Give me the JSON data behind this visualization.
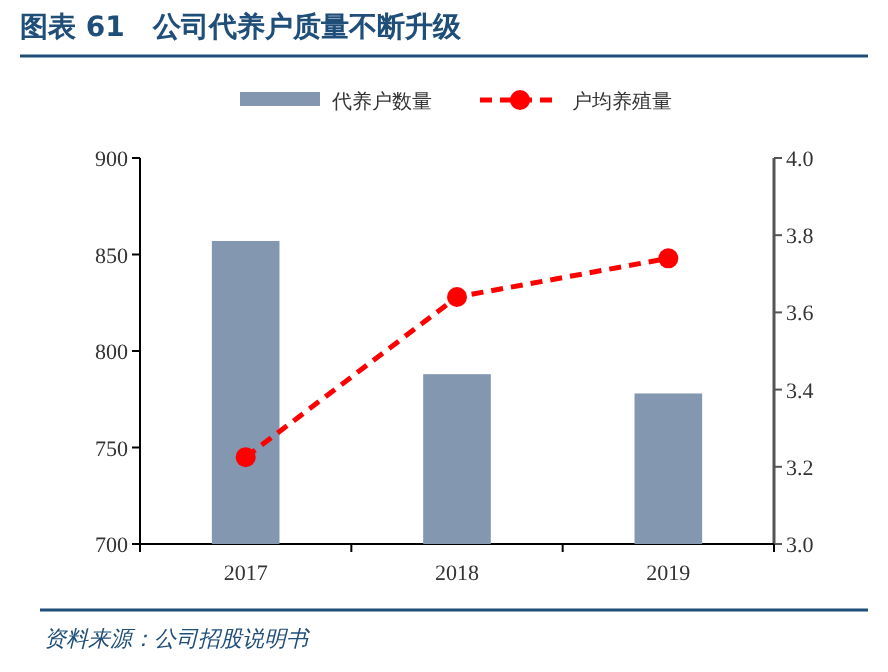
{
  "chart_data": {
    "type": "bar",
    "title": "图表 61　公司代养户质量不断升级",
    "categories": [
      "2017",
      "2018",
      "2019"
    ],
    "series": [
      {
        "name": "代养户数量",
        "color": "#8497b0",
        "values": [
          857,
          788,
          778
        ]
      },
      {
        "name": "户均养殖量",
        "type": "line",
        "color": "#ff0000",
        "values": [
          3.225,
          3.64,
          3.74
        ],
        "axis": "y2",
        "marker": "circle",
        "line_style": "dashed"
      }
    ],
    "ylim": [
      700,
      900
    ],
    "yticks": [
      700,
      750,
      800,
      850,
      900
    ],
    "y2lim": [
      3.0,
      4.0
    ],
    "y2ticks": [
      {
        "value": 3.0,
        "label": "3.0"
      },
      {
        "value": 3.2,
        "label": "3.2"
      },
      {
        "value": 3.4,
        "label": "3.4"
      },
      {
        "value": 3.6,
        "label": "3.6"
      },
      {
        "value": 3.8,
        "label": "3.8"
      },
      {
        "value": 4.0,
        "label": "4.0"
      }
    ],
    "legend": "top",
    "annotations": [
      "资料来源：公司招股说明书"
    ]
  }
}
